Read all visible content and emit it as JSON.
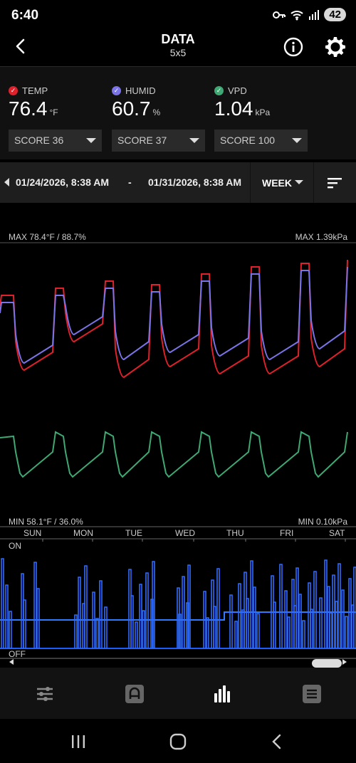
{
  "status": {
    "time": "6:40",
    "battery": "42"
  },
  "header": {
    "title": "DATA",
    "subtitle": "5x5"
  },
  "metrics": [
    {
      "label": "TEMP",
      "value": "76.4",
      "unit": "°F",
      "score": "SCORE 36",
      "color": "#e0202a"
    },
    {
      "label": "HUMID",
      "value": "60.7",
      "unit": "%",
      "score": "SCORE 37",
      "color": "#7b74e8"
    },
    {
      "label": "VPD",
      "value": "1.04",
      "unit": "kPa",
      "score": "SCORE 100",
      "color": "#3fa873"
    }
  ],
  "range": {
    "start": "01/24/2026, 8:38 AM",
    "separator": "-",
    "end": "01/31/2026, 8:38 AM",
    "period": "WEEK"
  },
  "chart": {
    "max_left": "MAX 78.4°F / 88.7%",
    "max_right": "MAX 1.39kPa",
    "min_left": "MIN 58.1°F / 36.0%",
    "min_right": "MIN 0.10kPa",
    "days": [
      "SUN",
      "MON",
      "TUE",
      "WED",
      "THU",
      "FRI",
      "SAT"
    ],
    "on_label": "ON",
    "off_label": "OFF"
  },
  "chart_data": {
    "type": "line",
    "x": [
      "SUN",
      "MON",
      "TUE",
      "WED",
      "THU",
      "FRI",
      "SAT"
    ],
    "series": [
      {
        "name": "TEMP",
        "color": "#e0202a"
      },
      {
        "name": "HUMID",
        "color": "#7b74e8"
      },
      {
        "name": "VPD",
        "color": "#3fa873"
      }
    ]
  },
  "nav": {
    "items": [
      "sliders-icon",
      "automation-icon",
      "data-icon",
      "notes-icon"
    ],
    "active": "data-icon"
  },
  "colors": {
    "accent_blue": "#2f6bff",
    "panel": "#1e1e1e"
  }
}
